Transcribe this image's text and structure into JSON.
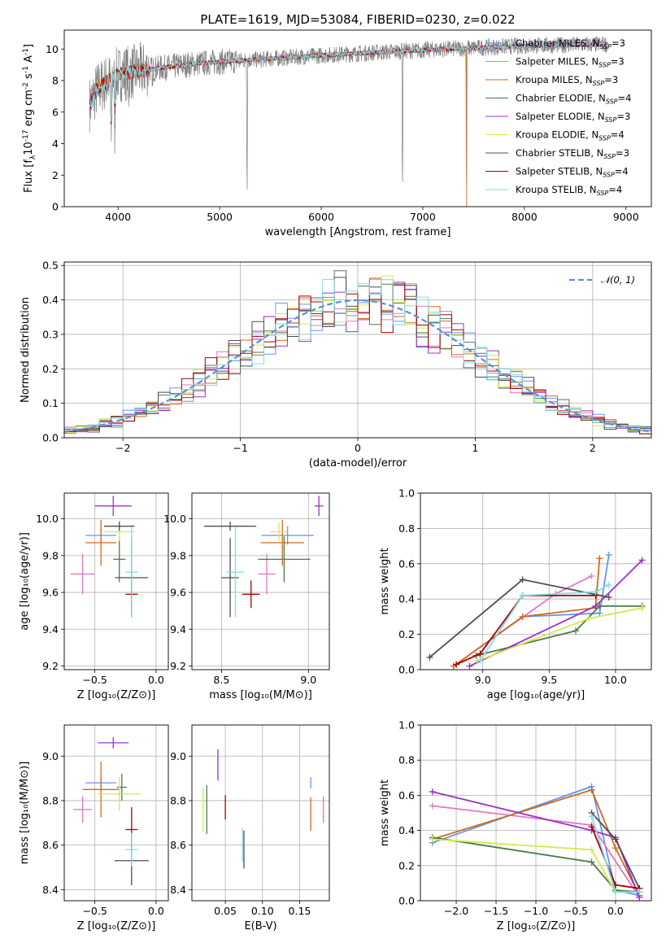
{
  "figure": {
    "title": "PLATE=1619, MJD=53084, FIBERID=0230, z=0.022"
  },
  "models": [
    {
      "label": "Chabrier MILES, N",
      "nssp": "=3",
      "color": "#6495ed"
    },
    {
      "label": "Salpeter MILES, N",
      "nssp": "=3",
      "color": "#e377c2"
    },
    {
      "label": "Kroupa MILES, N",
      "nssp": "=3",
      "color": "#d2691e"
    },
    {
      "label": "Chabrier ELODIE, N",
      "nssp": "=4",
      "color": "#4a7d4a"
    },
    {
      "label": "Salpeter ELODIE, N",
      "nssp": "=3",
      "color": "#9b30ce"
    },
    {
      "label": "Kroupa ELODIE, N",
      "nssp": "=4",
      "color": "#d4e94a"
    },
    {
      "label": "Chabrier STELIB, N",
      "nssp": "=3",
      "color": "#4d4d4d"
    },
    {
      "label": "Salpeter STELIB, N",
      "nssp": "=4",
      "color": "#a50000"
    },
    {
      "label": "Kroupa STELIB, N",
      "nssp": "=4",
      "color": "#7fdde3"
    }
  ],
  "chart_data": [
    {
      "id": "spectrum",
      "type": "line",
      "title": "PLATE=1619, MJD=53084, FIBERID=0230, z=0.022",
      "xlabel": "wavelength [Angstrom, rest frame]",
      "ylabel_main": "Flux [f",
      "ylabel_sub": "λ",
      "ylabel_rest": "10",
      "ylabel_exp": "-17",
      "ylabel_units": " erg cm",
      "ylabel_exp2": "-2",
      "ylabel_units2": " s",
      "ylabel_exp3": "-1",
      "ylabel_units3": " A",
      "ylabel_exp4": "-1",
      "ylabel_end": "]",
      "xlim": [
        3470,
        9250
      ],
      "ylim": [
        0,
        11.2
      ],
      "xticks": [
        4000,
        5000,
        6000,
        7000,
        8000,
        9000
      ],
      "yticks": [
        0,
        2,
        4,
        6,
        8,
        10
      ],
      "data_range": [
        3720,
        8820
      ],
      "continuum": [
        [
          3720,
          6.5
        ],
        [
          3800,
          7.5
        ],
        [
          4000,
          8.4
        ],
        [
          4300,
          8.7
        ],
        [
          4800,
          9.1
        ],
        [
          5300,
          9.3
        ],
        [
          6000,
          9.6
        ],
        [
          6600,
          9.8
        ],
        [
          7200,
          10.0
        ],
        [
          8000,
          10.2
        ],
        [
          8800,
          10.3
        ]
      ],
      "absorption_dips": [
        [
          3934,
          2.5
        ],
        [
          3968,
          3.0
        ],
        [
          4102,
          6.5
        ],
        [
          4340,
          7.2
        ],
        [
          5270,
          0.0
        ],
        [
          6800,
          0.0
        ],
        [
          7430,
          0.0
        ]
      ],
      "legend": "top-right"
    },
    {
      "id": "residuals",
      "type": "step",
      "xlabel": "(data-model)/error",
      "ylabel": "Normed distribution",
      "xlim": [
        -2.5,
        2.5
      ],
      "ylim": [
        0,
        0.51
      ],
      "xticks": [
        -2,
        -1,
        0,
        1,
        2
      ],
      "yticks": [
        0.0,
        0.1,
        0.2,
        0.3,
        0.4,
        0.5
      ],
      "bin_width": 0.1,
      "reference": {
        "name": "𝒩(0, 1)",
        "color": "#5b8fd6",
        "style": "dashed"
      },
      "grid": true,
      "legend": "top-right"
    },
    {
      "id": "age_vs_Z",
      "type": "errorbar",
      "xlabel": "Z [log10(Z/Z⊙)]",
      "ylabel": "age  [log10(age/yr)]",
      "xlim": [
        -0.75,
        0.1
      ],
      "ylim": [
        9.18,
        10.14
      ],
      "xticks": [
        -0.5,
        0.0
      ],
      "yticks": [
        9.2,
        9.4,
        9.6,
        9.8,
        10.0
      ],
      "points": [
        {
          "model": 0,
          "x": -0.45,
          "xerr": 0.25,
          "y": 9.91,
          "yerr": 0.1
        },
        {
          "model": 1,
          "x": -0.6,
          "xerr": 0.2,
          "y": 9.7,
          "yerr": 0.22
        },
        {
          "model": 2,
          "x": -0.45,
          "xerr": 0.25,
          "y": 9.87,
          "yerr": 0.25
        },
        {
          "model": 3,
          "x": -0.3,
          "xerr": 0.1,
          "y": 9.78,
          "yerr": 0.25
        },
        {
          "model": 4,
          "x": -0.35,
          "xerr": 0.3,
          "y": 10.07,
          "yerr": 0.11
        },
        {
          "model": 5,
          "x": -0.3,
          "xerr": 0.25,
          "y": 9.93,
          "yerr": 0.1
        },
        {
          "model": 6,
          "x": -0.3,
          "xerr": 0.25,
          "y": 9.96,
          "yerr": 0.05
        },
        {
          "model": 6,
          "x": -0.2,
          "xerr": 0.27,
          "y": 9.68,
          "yerr": 0.43
        },
        {
          "model": 7,
          "x": -0.2,
          "xerr": 0.1,
          "y": 9.59,
          "yerr": 0.15
        },
        {
          "model": 8,
          "x": -0.2,
          "xerr": 0.1,
          "y": 9.71,
          "yerr": 0.49
        }
      ]
    },
    {
      "id": "age_vs_mass",
      "type": "errorbar",
      "xlabel": "mass [log10(M/M⊙)]",
      "ylim": [
        9.18,
        10.14
      ],
      "xlim": [
        8.33,
        9.12
      ],
      "xticks": [
        8.5,
        9.0
      ],
      "yticks": [
        9.2,
        9.4,
        9.6,
        9.8,
        10.0
      ],
      "points": [
        {
          "model": 0,
          "x": 8.88,
          "xerr": 0.3,
          "y": 9.91,
          "yerr": 0.1
        },
        {
          "model": 1,
          "x": 8.76,
          "xerr": 0.1,
          "y": 9.7,
          "yerr": 0.22
        },
        {
          "model": 2,
          "x": 8.85,
          "xerr": 0.25,
          "y": 9.87,
          "yerr": 0.25
        },
        {
          "model": 3,
          "x": 8.86,
          "xerr": 0.3,
          "y": 9.78,
          "yerr": 0.25
        },
        {
          "model": 4,
          "x": 9.06,
          "xerr": 0.05,
          "y": 10.07,
          "yerr": 0.11
        },
        {
          "model": 5,
          "x": 8.83,
          "xerr": 0.1,
          "y": 9.93,
          "yerr": 0.1
        },
        {
          "model": 6,
          "x": 8.55,
          "xerr": 0.3,
          "y": 9.96,
          "yerr": 0.05
        },
        {
          "model": 6,
          "x": 8.55,
          "xerr": 0.1,
          "y": 9.68,
          "yerr": 0.43
        },
        {
          "model": 7,
          "x": 8.67,
          "xerr": 0.1,
          "y": 9.59,
          "yerr": 0.15
        },
        {
          "model": 8,
          "x": 8.58,
          "xerr": 0.1,
          "y": 9.71,
          "yerr": 0.49
        }
      ]
    },
    {
      "id": "weight_vs_age",
      "type": "line",
      "xlabel": "age  [log10(age/yr)]",
      "ylabel": "mass weight",
      "xlim": [
        8.53,
        10.27
      ],
      "ylim": [
        0,
        1.0
      ],
      "xticks": [
        9.0,
        9.5,
        10.0
      ],
      "yticks": [
        0.0,
        0.2,
        0.4,
        0.6,
        0.8,
        1.0
      ],
      "series": [
        {
          "model": 0,
          "x": [
            8.78,
            9.3,
            9.88,
            9.95
          ],
          "y": [
            0.02,
            0.3,
            0.32,
            0.65
          ]
        },
        {
          "model": 1,
          "x": [
            8.78,
            9.55,
            9.82
          ],
          "y": [
            0.02,
            0.43,
            0.53
          ]
        },
        {
          "model": 2,
          "x": [
            8.78,
            9.3,
            9.85,
            9.88
          ],
          "y": [
            0.02,
            0.3,
            0.35,
            0.63
          ]
        },
        {
          "model": 3,
          "x": [
            8.95,
            9.7,
            9.88,
            10.2
          ],
          "y": [
            0.08,
            0.22,
            0.36,
            0.36
          ]
        },
        {
          "model": 4,
          "x": [
            8.9,
            9.85,
            10.2
          ],
          "y": [
            0.02,
            0.36,
            0.62
          ]
        },
        {
          "model": 5,
          "x": [
            8.96,
            9.8,
            10.2
          ],
          "y": [
            0.05,
            0.29,
            0.35
          ]
        },
        {
          "model": 6,
          "x": [
            8.6,
            9.3,
            9.95
          ],
          "y": [
            0.07,
            0.51,
            0.41
          ]
        },
        {
          "model": 7,
          "x": [
            8.8,
            8.98,
            9.3,
            9.85
          ],
          "y": [
            0.03,
            0.09,
            0.42,
            0.42
          ]
        },
        {
          "model": 8,
          "x": [
            8.98,
            9.3,
            9.85,
            9.95
          ],
          "y": [
            0.05,
            0.42,
            0.44,
            0.48
          ]
        }
      ]
    },
    {
      "id": "mass_vs_Z",
      "type": "errorbar",
      "xlabel": "Z [log10(Z/Z⊙)]",
      "ylabel": "mass [log10(M/M⊙)]",
      "xlim": [
        -0.75,
        0.1
      ],
      "ylim": [
        8.35,
        9.14
      ],
      "xticks": [
        -0.5,
        0.0
      ],
      "yticks": [
        8.4,
        8.6,
        8.8,
        9.0
      ],
      "points": [
        {
          "model": 0,
          "x": -0.45,
          "xerr": 0.25,
          "y": 8.88,
          "yerr": 0.05
        },
        {
          "model": 1,
          "x": -0.6,
          "xerr": 0.15,
          "y": 8.76,
          "yerr": 0.12
        },
        {
          "model": 2,
          "x": -0.45,
          "xerr": 0.3,
          "y": 8.85,
          "yerr": 0.25
        },
        {
          "model": 3,
          "x": -0.28,
          "xerr": 0.08,
          "y": 8.86,
          "yerr": 0.12
        },
        {
          "model": 4,
          "x": -0.35,
          "xerr": 0.25,
          "y": 9.06,
          "yerr": 0.05
        },
        {
          "model": 5,
          "x": -0.3,
          "xerr": 0.35,
          "y": 8.83,
          "yerr": 0.15
        },
        {
          "model": 6,
          "x": -0.2,
          "xerr": 0.28,
          "y": 8.53,
          "yerr": 0.22
        },
        {
          "model": 7,
          "x": -0.2,
          "xerr": 0.1,
          "y": 8.67,
          "yerr": 0.2
        },
        {
          "model": 8,
          "x": -0.2,
          "xerr": 0.1,
          "y": 8.58,
          "yerr": 0.15
        }
      ]
    },
    {
      "id": "mass_vs_ebv",
      "type": "errorbar",
      "xlabel": "E(B-V)",
      "xlim": [
        0.005,
        0.19
      ],
      "ylim": [
        8.35,
        9.14
      ],
      "xticks": [
        0.05,
        0.1,
        0.15
      ],
      "xtick_labels": [
        "0.05",
        "0.10",
        "0.15"
      ],
      "yticks": [
        8.4,
        8.6,
        8.8,
        9.0
      ],
      "points": [
        {
          "model": 0,
          "x": 0.165,
          "y": 8.88,
          "yerr": 0.05
        },
        {
          "model": 1,
          "x": 0.182,
          "y": 8.76,
          "yerr": 0.12
        },
        {
          "model": 2,
          "x": 0.165,
          "y": 8.74,
          "yerr": 0.15
        },
        {
          "model": 3,
          "x": 0.025,
          "y": 8.76,
          "yerr": 0.22
        },
        {
          "model": 4,
          "x": 0.04,
          "y": 8.96,
          "yerr": 0.14
        },
        {
          "model": 5,
          "x": 0.02,
          "y": 8.76,
          "yerr": 0.2
        },
        {
          "model": 6,
          "x": 0.075,
          "y": 8.58,
          "yerr": 0.17
        },
        {
          "model": 7,
          "x": 0.05,
          "y": 8.77,
          "yerr": 0.11
        },
        {
          "model": 8,
          "x": 0.073,
          "y": 8.6,
          "yerr": 0.15
        }
      ]
    },
    {
      "id": "weight_vs_Z",
      "type": "line",
      "xlabel": "Z [log10(Z/Z⊙)]",
      "ylabel": "mass weight",
      "xlim": [
        -2.45,
        0.45
      ],
      "ylim": [
        0,
        1.0
      ],
      "xticks": [
        -2.0,
        -1.5,
        -1.0,
        -0.5,
        0.0
      ],
      "yticks": [
        0.0,
        0.2,
        0.4,
        0.6,
        0.8,
        1.0
      ],
      "series": [
        {
          "model": 0,
          "x": [
            -2.3,
            -0.3,
            0.0,
            0.3
          ],
          "y": [
            0.33,
            0.65,
            0.06,
            0.03
          ]
        },
        {
          "model": 1,
          "x": [
            -2.3,
            -0.3,
            0.3
          ],
          "y": [
            0.54,
            0.43,
            0.02
          ]
        },
        {
          "model": 2,
          "x": [
            -2.3,
            -0.3,
            0.0,
            0.3
          ],
          "y": [
            0.35,
            0.63,
            0.3,
            0.03
          ]
        },
        {
          "model": 3,
          "x": [
            -2.3,
            -0.3,
            0.0,
            0.3
          ],
          "y": [
            0.36,
            0.22,
            0.06,
            0.05
          ]
        },
        {
          "model": 4,
          "x": [
            -2.3,
            -0.3,
            0.0,
            0.3
          ],
          "y": [
            0.62,
            0.4,
            0.36,
            0.02
          ]
        },
        {
          "model": 5,
          "x": [
            -2.3,
            -0.3,
            0.0
          ],
          "y": [
            0.35,
            0.29,
            0.05
          ]
        },
        {
          "model": 6,
          "x": [
            -0.3,
            0.0,
            0.3
          ],
          "y": [
            0.5,
            0.35,
            0.07
          ]
        },
        {
          "model": 7,
          "x": [
            -0.3,
            0.0,
            0.3
          ],
          "y": [
            0.42,
            0.09,
            0.07
          ]
        },
        {
          "model": 8,
          "x": [
            -0.3,
            0.0,
            0.3
          ],
          "y": [
            0.48,
            0.05,
            0.05
          ]
        }
      ]
    }
  ]
}
